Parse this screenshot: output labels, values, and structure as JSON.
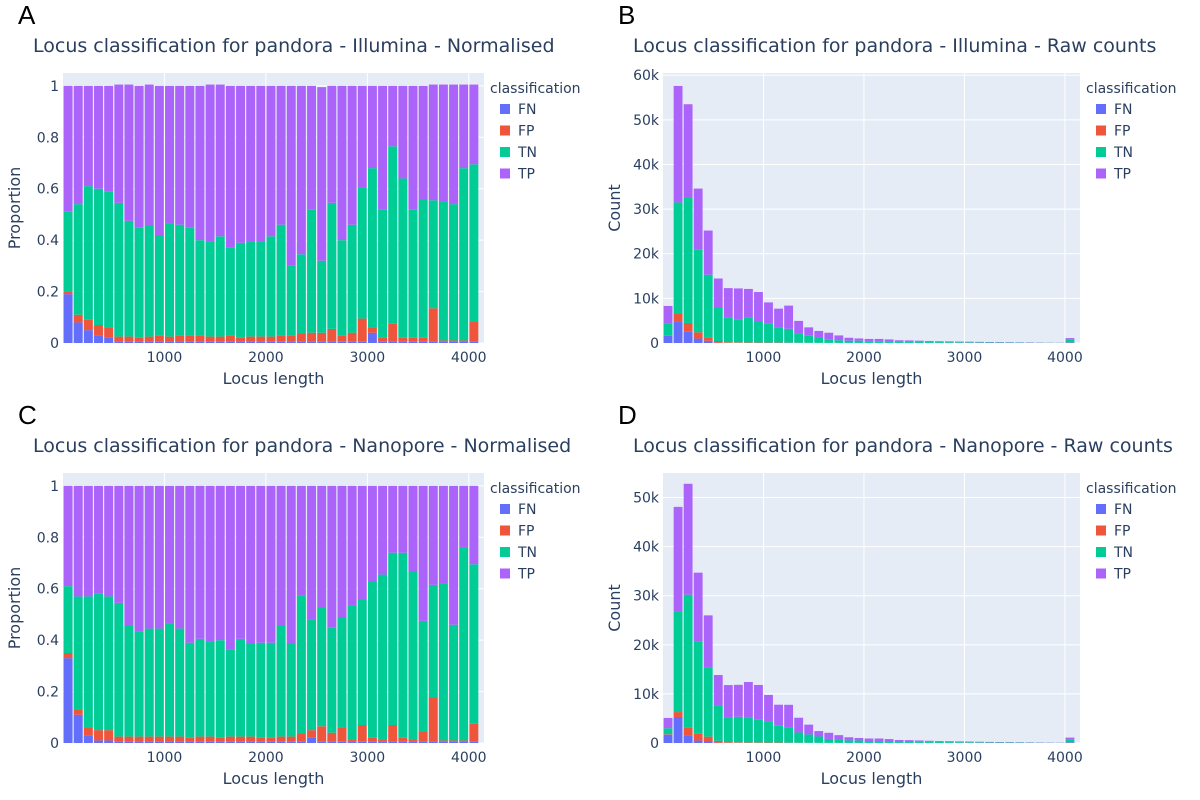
{
  "chart_data": [
    {
      "panel": "A",
      "type": "bar",
      "barmode": "stack",
      "title": "Locus classification for pandora - Illumina - Normalised",
      "xlabel": "Locus length",
      "ylabel": "Proportion",
      "xlim": [
        0,
        4150
      ],
      "ylim": [
        0,
        1.05
      ],
      "xticks": [
        1000,
        2000,
        3000,
        4000
      ],
      "yticks": [
        0,
        0.2,
        0.4,
        0.6,
        0.8,
        1
      ],
      "ytick_labels": [
        "0",
        "0.2",
        "0.4",
        "0.6",
        "0.8",
        "1"
      ],
      "legend_title": "classification",
      "legend_position": "top-right",
      "bin_start": 0,
      "bin_width": 100,
      "series": [
        {
          "name": "FN",
          "color": "#636efa",
          "values": [
            0.19,
            0.08,
            0.05,
            0.03,
            0.02,
            0.005,
            0.005,
            0.005,
            0.005,
            0.005,
            0.005,
            0.005,
            0.005,
            0.005,
            0.005,
            0.005,
            0.005,
            0.005,
            0.005,
            0.005,
            0.005,
            0.005,
            0.005,
            0.005,
            0.005,
            0.005,
            0.005,
            0.005,
            0.005,
            0.005,
            0.04,
            0.005,
            0.005,
            0.005,
            0.005,
            0.005,
            0.005,
            0.005,
            0.005,
            0.005,
            0.005
          ]
        },
        {
          "name": "FP",
          "color": "#ef553b",
          "values": [
            0.01,
            0.03,
            0.04,
            0.04,
            0.04,
            0.02,
            0.02,
            0.015,
            0.02,
            0.025,
            0.02,
            0.025,
            0.025,
            0.025,
            0.02,
            0.02,
            0.025,
            0.015,
            0.02,
            0.02,
            0.02,
            0.025,
            0.025,
            0.03,
            0.035,
            0.035,
            0.05,
            0.025,
            0.035,
            0.09,
            0.02,
            0.015,
            0.07,
            0.015,
            0.015,
            0.015,
            0.13,
            0.005,
            0.005,
            0.005,
            0.08
          ]
        },
        {
          "name": "TN",
          "color": "#00cc96",
          "values": [
            0.31,
            0.43,
            0.52,
            0.53,
            0.53,
            0.52,
            0.45,
            0.43,
            0.43,
            0.39,
            0.44,
            0.43,
            0.42,
            0.37,
            0.37,
            0.39,
            0.34,
            0.37,
            0.37,
            0.37,
            0.39,
            0.43,
            0.27,
            0.31,
            0.48,
            0.28,
            0.49,
            0.37,
            0.42,
            0.51,
            0.62,
            0.5,
            0.69,
            0.62,
            0.5,
            0.54,
            0.42,
            0.54,
            0.53,
            0.67,
            0.61
          ]
        },
        {
          "name": "TP",
          "color": "#ab63fa",
          "values": [
            0.49,
            0.46,
            0.39,
            0.4,
            0.41,
            0.46,
            0.53,
            0.55,
            0.55,
            0.58,
            0.535,
            0.54,
            0.55,
            0.6,
            0.61,
            0.59,
            0.63,
            0.61,
            0.605,
            0.605,
            0.585,
            0.54,
            0.7,
            0.655,
            0.48,
            0.675,
            0.455,
            0.6,
            0.54,
            0.395,
            0.32,
            0.48,
            0.235,
            0.36,
            0.48,
            0.44,
            0.45,
            0.455,
            0.465,
            0.325,
            0.31
          ]
        }
      ]
    },
    {
      "panel": "B",
      "type": "bar",
      "barmode": "stack",
      "title": "Locus classification for pandora - Illumina - Raw counts",
      "xlabel": "Locus length",
      "ylabel": "Count",
      "xlim": [
        0,
        4150
      ],
      "ylim": [
        0,
        60500
      ],
      "xticks": [
        1000,
        2000,
        3000,
        4000
      ],
      "yticks": [
        0,
        10000,
        20000,
        30000,
        40000,
        50000,
        60000
      ],
      "ytick_labels": [
        "0",
        "10k",
        "20k",
        "30k",
        "40k",
        "50k",
        "60k"
      ],
      "legend_title": "classification",
      "legend_position": "top-right",
      "bin_start": 0,
      "bin_width": 100,
      "series": [
        {
          "name": "FN",
          "color": "#636efa",
          "values": [
            1600,
            4800,
            2500,
            1000,
            500,
            50,
            30,
            30,
            20,
            20,
            20,
            20,
            20,
            10,
            10,
            10,
            10,
            10,
            10,
            10,
            5,
            5,
            5,
            5,
            5,
            5,
            5,
            5,
            5,
            5,
            5,
            5,
            5,
            5,
            5,
            5,
            5,
            5,
            5,
            5,
            100
          ]
        },
        {
          "name": "FP",
          "color": "#ef553b",
          "values": [
            100,
            1700,
            2000,
            1400,
            700,
            400,
            150,
            120,
            100,
            100,
            80,
            80,
            60,
            40,
            30,
            20,
            15,
            15,
            12,
            10,
            10,
            8,
            8,
            8,
            6,
            6,
            6,
            5,
            5,
            5,
            5,
            5,
            5,
            5,
            5,
            5,
            5,
            5,
            5,
            5,
            50
          ]
        },
        {
          "name": "TN",
          "color": "#00cc96",
          "values": [
            2700,
            25000,
            28000,
            18600,
            14100,
            7500,
            5500,
            5200,
            5500,
            4700,
            4300,
            3400,
            3100,
            2100,
            1700,
            1300,
            800,
            600,
            500,
            500,
            400,
            400,
            300,
            300,
            300,
            250,
            250,
            200,
            180,
            160,
            150,
            130,
            110,
            100,
            90,
            80,
            70,
            60,
            50,
            40,
            600
          ]
        },
        {
          "name": "TP",
          "color": "#ab63fa",
          "values": [
            3900,
            26100,
            21000,
            13600,
            9900,
            6500,
            6620,
            6880,
            6500,
            6600,
            4700,
            4200,
            5200,
            2800,
            1760,
            1370,
            1475,
            1075,
            650,
            500,
            500,
            500,
            487,
            300,
            270,
            260,
            200,
            180,
            170,
            150,
            130,
            120,
            100,
            90,
            80,
            70,
            60,
            50,
            40,
            30,
            350
          ]
        }
      ]
    },
    {
      "panel": "C",
      "type": "bar",
      "barmode": "stack",
      "title": "Locus classification for pandora - Nanopore - Normalised",
      "xlabel": "Locus length",
      "ylabel": "Proportion",
      "xlim": [
        0,
        4150
      ],
      "ylim": [
        0,
        1.05
      ],
      "xticks": [
        1000,
        2000,
        3000,
        4000
      ],
      "yticks": [
        0,
        0.2,
        0.4,
        0.6,
        0.8,
        1
      ],
      "ytick_labels": [
        "0",
        "0.2",
        "0.4",
        "0.6",
        "0.8",
        "1"
      ],
      "legend_title": "classification",
      "legend_position": "top-right",
      "bin_start": 0,
      "bin_width": 100,
      "series": [
        {
          "name": "FN",
          "color": "#636efa",
          "values": [
            0.33,
            0.11,
            0.03,
            0.01,
            0.01,
            0.005,
            0.005,
            0.005,
            0.005,
            0.005,
            0.005,
            0.005,
            0.005,
            0.005,
            0.005,
            0.005,
            0.005,
            0.005,
            0.005,
            0.005,
            0.005,
            0.005,
            0.005,
            0.005,
            0.02,
            0.005,
            0.005,
            0.005,
            0.005,
            0.005,
            0.005,
            0.005,
            0.005,
            0.005,
            0.005,
            0.005,
            0.005,
            0.005,
            0.005,
            0.005,
            0.005
          ]
        },
        {
          "name": "FP",
          "color": "#ef553b",
          "values": [
            0.02,
            0.02,
            0.03,
            0.04,
            0.04,
            0.02,
            0.02,
            0.02,
            0.02,
            0.02,
            0.02,
            0.02,
            0.015,
            0.02,
            0.02,
            0.015,
            0.02,
            0.02,
            0.02,
            0.015,
            0.015,
            0.02,
            0.02,
            0.03,
            0.03,
            0.06,
            0.035,
            0.055,
            0.01,
            0.065,
            0.015,
            0.01,
            0.065,
            0.015,
            0.01,
            0.04,
            0.17,
            0.005,
            0.005,
            0.005,
            0.07
          ]
        },
        {
          "name": "TN",
          "color": "#00cc96",
          "values": [
            0.26,
            0.44,
            0.51,
            0.53,
            0.52,
            0.52,
            0.43,
            0.41,
            0.42,
            0.42,
            0.44,
            0.42,
            0.37,
            0.38,
            0.37,
            0.38,
            0.34,
            0.38,
            0.36,
            0.37,
            0.37,
            0.43,
            0.36,
            0.54,
            0.43,
            0.46,
            0.41,
            0.43,
            0.52,
            0.49,
            0.61,
            0.64,
            0.67,
            0.72,
            0.65,
            0.43,
            0.44,
            0.61,
            0.45,
            0.75,
            0.62
          ]
        },
        {
          "name": "TP",
          "color": "#ab63fa",
          "values": [
            0.39,
            0.43,
            0.43,
            0.42,
            0.43,
            0.455,
            0.545,
            0.565,
            0.555,
            0.555,
            0.535,
            0.555,
            0.61,
            0.595,
            0.605,
            0.6,
            0.635,
            0.595,
            0.615,
            0.61,
            0.61,
            0.545,
            0.615,
            0.425,
            0.52,
            0.475,
            0.55,
            0.51,
            0.465,
            0.44,
            0.37,
            0.345,
            0.26,
            0.26,
            0.335,
            0.525,
            0.385,
            0.38,
            0.54,
            0.24,
            0.305
          ]
        }
      ]
    },
    {
      "panel": "D",
      "type": "bar",
      "barmode": "stack",
      "title": "Locus classification for pandora - Nanopore - Raw counts",
      "xlabel": "Locus length",
      "ylabel": "Count",
      "xlim": [
        0,
        4150
      ],
      "ylim": [
        0,
        55000
      ],
      "xticks": [
        1000,
        2000,
        3000,
        4000
      ],
      "yticks": [
        0,
        10000,
        20000,
        30000,
        40000,
        50000
      ],
      "ytick_labels": [
        "0",
        "10k",
        "20k",
        "30k",
        "40k",
        "50k"
      ],
      "legend_title": "classification",
      "legend_position": "top-right",
      "bin_start": 0,
      "bin_width": 100,
      "series": [
        {
          "name": "FN",
          "color": "#636efa",
          "values": [
            1700,
            5300,
            1600,
            500,
            300,
            50,
            30,
            30,
            20,
            20,
            20,
            20,
            20,
            10,
            10,
            10,
            10,
            10,
            10,
            10,
            5,
            5,
            5,
            5,
            5,
            5,
            5,
            5,
            5,
            5,
            5,
            5,
            5,
            5,
            5,
            5,
            5,
            5,
            5,
            5,
            100
          ]
        },
        {
          "name": "FP",
          "color": "#ef553b",
          "values": [
            100,
            1000,
            1600,
            1400,
            1000,
            400,
            150,
            120,
            100,
            100,
            80,
            80,
            60,
            40,
            30,
            20,
            15,
            15,
            12,
            10,
            10,
            8,
            8,
            8,
            6,
            6,
            6,
            5,
            5,
            5,
            5,
            5,
            5,
            5,
            5,
            5,
            5,
            5,
            5,
            5,
            50
          ]
        },
        {
          "name": "TN",
          "color": "#00cc96",
          "values": [
            1200,
            20500,
            27000,
            18800,
            14000,
            7100,
            5100,
            5200,
            5100,
            4700,
            4300,
            3400,
            3100,
            2100,
            1700,
            1300,
            800,
            600,
            500,
            500,
            400,
            400,
            300,
            300,
            300,
            250,
            250,
            200,
            180,
            160,
            150,
            130,
            110,
            100,
            90,
            80,
            70,
            60,
            50,
            40,
            600
          ]
        },
        {
          "name": "TP",
          "color": "#ab63fa",
          "values": [
            2100,
            21300,
            22600,
            14000,
            10700,
            6300,
            6520,
            6500,
            7200,
            7000,
            5400,
            4300,
            4600,
            3000,
            2000,
            1100,
            1250,
            975,
            650,
            500,
            500,
            500,
            487,
            300,
            270,
            260,
            200,
            180,
            170,
            150,
            130,
            120,
            100,
            90,
            80,
            70,
            60,
            50,
            40,
            30,
            350
          ]
        }
      ]
    }
  ]
}
